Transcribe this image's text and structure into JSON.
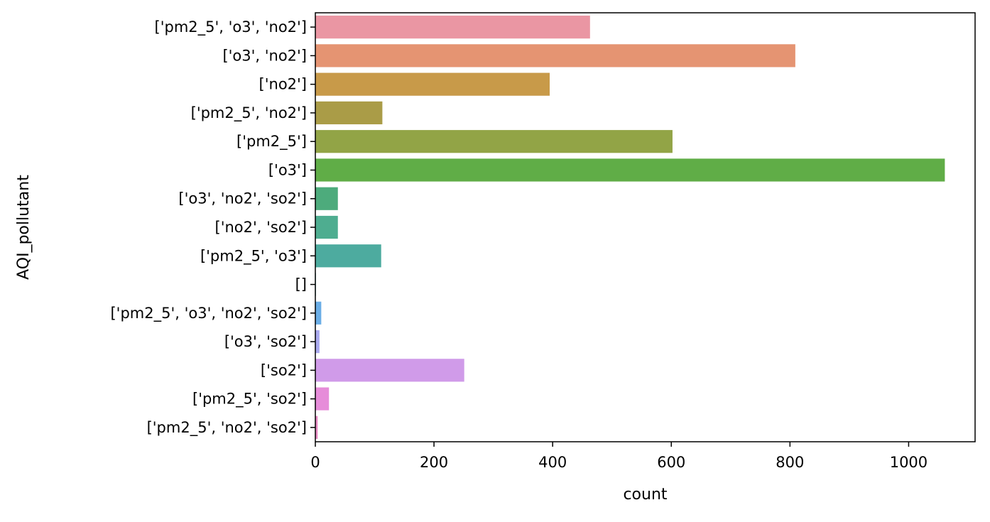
{
  "chart_data": {
    "type": "bar",
    "orientation": "horizontal",
    "title": "",
    "xlabel": "count",
    "ylabel": "AQI_pollutant",
    "xlim": [
      0,
      1112
    ],
    "xticks": [
      0,
      200,
      400,
      600,
      800,
      1000
    ],
    "grid": false,
    "legend": "none",
    "categories": [
      "['pm2_5', 'o3', 'no2']",
      "['o3', 'no2']",
      "['no2']",
      "['pm2_5', 'no2']",
      "['pm2_5']",
      "['o3']",
      "['o3', 'no2', 'so2']",
      "['no2', 'so2']",
      "['pm2_5', 'o3']",
      "[]",
      "['pm2_5', 'o3', 'no2', 'so2']",
      "['o3', 'so2']",
      "['so2']",
      "['pm2_5', 'so2']",
      "['pm2_5', 'no2', 'so2']"
    ],
    "values": [
      463,
      809,
      395,
      113,
      602,
      1061,
      38,
      38,
      111,
      1,
      10,
      7,
      251,
      23,
      4
    ],
    "colors": [
      "#ea96a3",
      "#e59472",
      "#c89a49",
      "#aa9c47",
      "#92a446",
      "#60ad47",
      "#4dab7c",
      "#4ead90",
      "#4dab9f",
      "#4eaab0",
      "#6aade6",
      "#a9a9ee",
      "#d09be9",
      "#e68cd9",
      "#e88ac4"
    ]
  }
}
